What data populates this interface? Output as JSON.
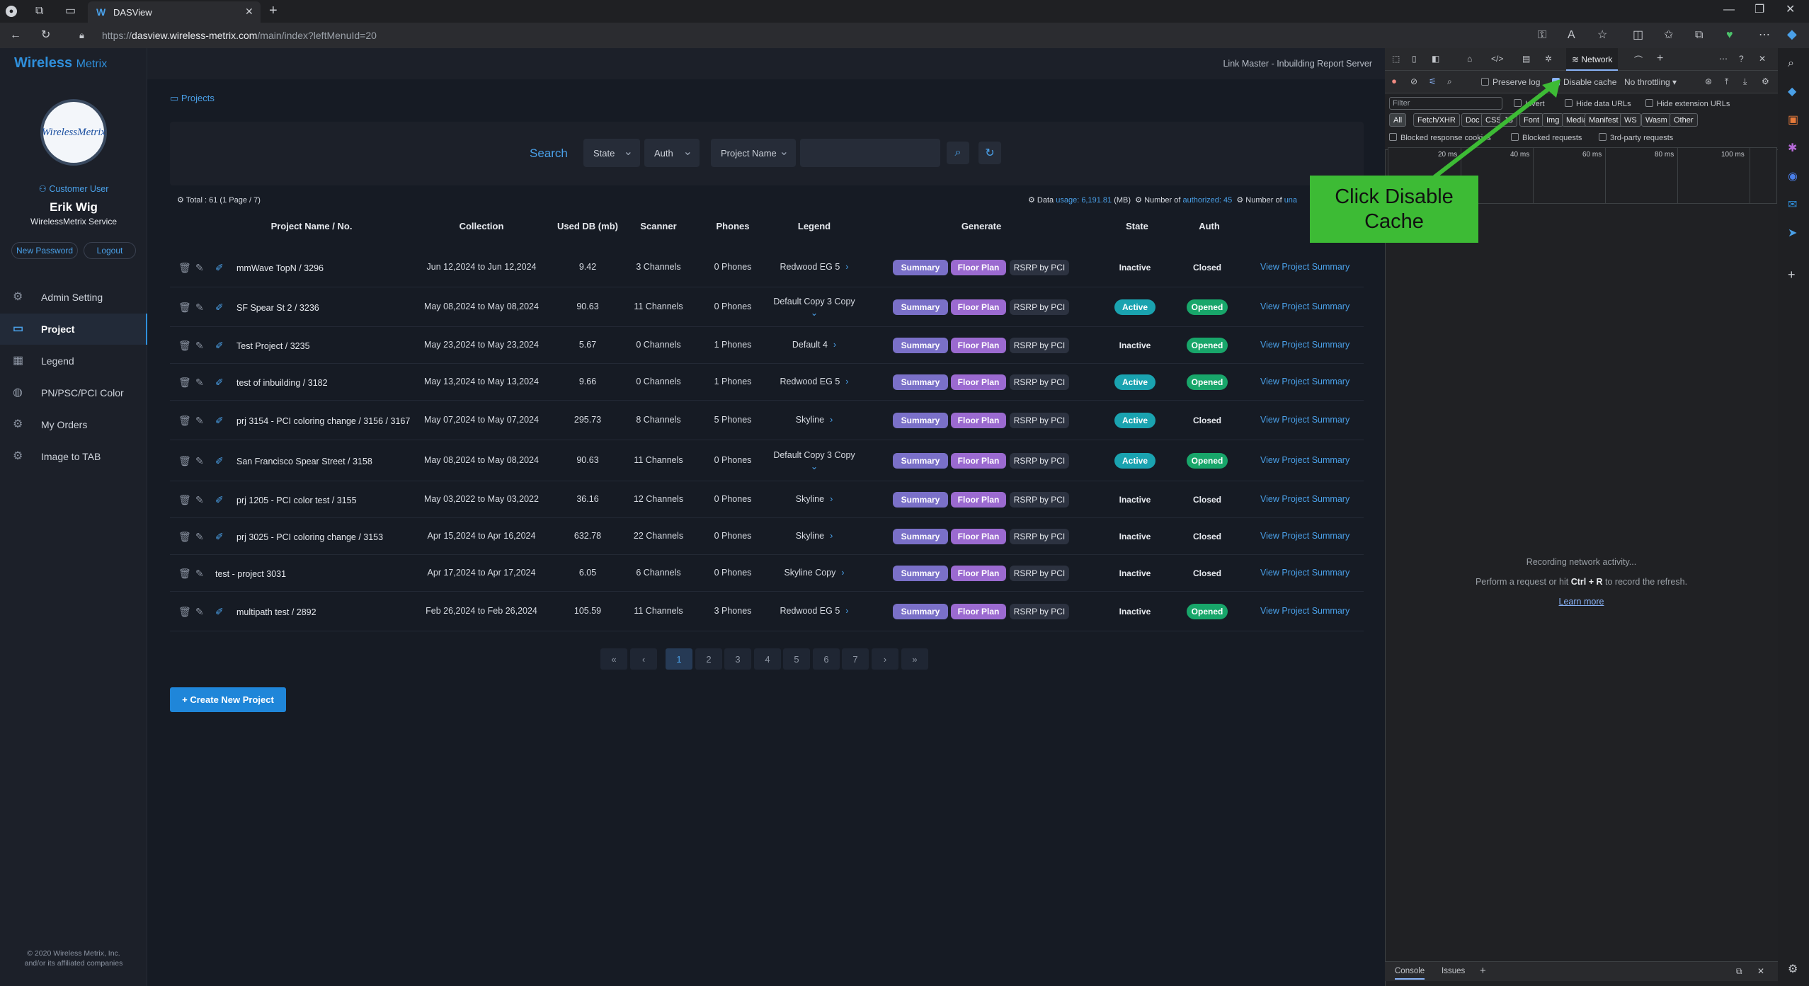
{
  "browser": {
    "tab_title": "DASView",
    "tab_favicon": "W",
    "url_prefix": "https://",
    "url_domain": "dasview.wireless-metrix.com",
    "url_path": "/main/index?leftMenuId=20"
  },
  "app": {
    "logo_main": "Wireless",
    "logo_sub": "Metrix",
    "header_right": "Link Master - Inbuilding Report Server",
    "avatar_text": "WirelessMetrix"
  },
  "user": {
    "role": "Customer User",
    "name": "Erik Wig",
    "company": "WirelessMetrix Service",
    "new_password": "New Password",
    "logout": "Logout"
  },
  "sidebar": {
    "items": [
      {
        "label": "Admin Setting",
        "icon": "gear-icon"
      },
      {
        "label": "Project",
        "icon": "monitor-icon"
      },
      {
        "label": "Legend",
        "icon": "grid-icon"
      },
      {
        "label": "PN/PSC/PCI Color",
        "icon": "palette-icon"
      },
      {
        "label": "My Orders",
        "icon": "gear-icon"
      },
      {
        "label": "Image to TAB",
        "icon": "gear-icon"
      }
    ],
    "footer_line1": "© 2020 Wireless Metrix, Inc.",
    "footer_line2": "and/or its affiliated companies"
  },
  "breadcrumb": "Projects",
  "search": {
    "label": "Search",
    "state": "State",
    "auth": "Auth",
    "project_name": "Project Name",
    "input_value": ""
  },
  "summary": {
    "total": "Total : 61 (1 Page / 7)",
    "data_prefix": "Data",
    "data_usage": "usage: 6,191.81",
    "data_unit": "(MB)",
    "authorized_prefix": "Number of",
    "authorized": "authorized: 45",
    "unauth_prefix": "Number of",
    "unauth": "una"
  },
  "table": {
    "headers": [
      "Project Name / No.",
      "Collection",
      "Used DB (mb)",
      "Scanner",
      "Phones",
      "Legend",
      "Generate",
      "State",
      "Auth"
    ],
    "rows": [
      {
        "name": "mmWave TopN / 3296",
        "collection": "Jun 12,2024 to Jun 12,2024",
        "db": "9.42",
        "scanner": "3 Channels",
        "phones": "0 Phones",
        "legend": "Redwood EG 5",
        "state": "Inactive",
        "auth": "Closed",
        "link": "View Project Summary"
      },
      {
        "name": "SF Spear St 2 / 3236",
        "collection": "May 08,2024 to May 08,2024",
        "db": "90.63",
        "scanner": "11 Channels",
        "phones": "0 Phones",
        "legend": "Default Copy 3 Copy",
        "state": "Active",
        "auth": "Opened",
        "link": "View Project Summary"
      },
      {
        "name": "Test Project / 3235",
        "collection": "May 23,2024 to May 23,2024",
        "db": "5.67",
        "scanner": "0 Channels",
        "phones": "1 Phones",
        "legend": "Default 4",
        "state": "Inactive",
        "auth": "Opened",
        "link": "View Project Summary"
      },
      {
        "name": "test of inbuilding / 3182",
        "collection": "May 13,2024 to May 13,2024",
        "db": "9.66",
        "scanner": "0 Channels",
        "phones": "1 Phones",
        "legend": "Redwood EG 5",
        "state": "Active",
        "auth": "Opened",
        "link": "View Project Summary"
      },
      {
        "name": "prj 3154 - PCI coloring change / 3156 / 3167",
        "collection": "May 07,2024 to May 07,2024",
        "db": "295.73",
        "scanner": "8 Channels",
        "phones": "5 Phones",
        "legend": "Skyline",
        "state": "Active",
        "auth": "Closed",
        "link": "View Project Summary"
      },
      {
        "name": "San Francisco Spear Street / 3158",
        "collection": "May 08,2024 to May 08,2024",
        "db": "90.63",
        "scanner": "11 Channels",
        "phones": "0 Phones",
        "legend": "Default Copy 3 Copy",
        "state": "Active",
        "auth": "Opened",
        "link": "View Project Summary"
      },
      {
        "name": "prj 1205 - PCI color test / 3155",
        "collection": "May 03,2022 to May 03,2022",
        "db": "36.16",
        "scanner": "12 Channels",
        "phones": "0 Phones",
        "legend": "Skyline",
        "state": "Inactive",
        "auth": "Closed",
        "link": "View Project Summary"
      },
      {
        "name": "prj 3025 - PCI coloring change / 3153",
        "collection": "Apr 15,2024 to Apr 16,2024",
        "db": "632.78",
        "scanner": "22 Channels",
        "phones": "0 Phones",
        "legend": "Skyline",
        "state": "Inactive",
        "auth": "Closed",
        "link": "View Project Summary"
      },
      {
        "name": "test - project 3031",
        "collection": "Apr 17,2024 to Apr 17,2024",
        "db": "6.05",
        "scanner": "6 Channels",
        "phones": "0 Phones",
        "legend": "Skyline Copy",
        "state": "Inactive",
        "auth": "Closed",
        "link": "View Project Summary"
      },
      {
        "name": "multipath test / 2892",
        "collection": "Feb 26,2024 to Feb 26,2024",
        "db": "105.59",
        "scanner": "11 Channels",
        "phones": "3 Phones",
        "legend": "Redwood EG 5",
        "state": "Inactive",
        "auth": "Opened",
        "link": "View Project Summary"
      }
    ],
    "generate_buttons": [
      "Summary",
      "Floor Plan",
      "RSRP by PCI"
    ]
  },
  "pagination": {
    "first": "«",
    "prev": "‹",
    "pages": [
      "1",
      "2",
      "3",
      "4",
      "5",
      "6",
      "7"
    ],
    "current": "1",
    "next": "›",
    "last": "»"
  },
  "create_button": "+ Create New Project",
  "devtools": {
    "active_tab": "Network",
    "preserve_log": "Preserve log",
    "disable_cache": "Disable cache",
    "throttling": "No throttling",
    "filter_placeholder": "Filter",
    "invert": "Invert",
    "hide_data_urls": "Hide data URLs",
    "hide_extension_urls": "Hide extension URLs",
    "filter_types": [
      "All",
      "Fetch/XHR",
      "Doc",
      "CSS",
      "JS",
      "Font",
      "Img",
      "Media",
      "Manifest",
      "WS",
      "Wasm",
      "Other"
    ],
    "blocked_cookies": "Blocked response cookies",
    "blocked_requests": "Blocked requests",
    "third_party": "3rd-party requests",
    "timeline_ticks": [
      "20 ms",
      "40 ms",
      "60 ms",
      "80 ms",
      "100 ms"
    ],
    "recording": "Recording network activity...",
    "hint_prefix": "Perform a request or hit",
    "hint_keys": "Ctrl + R",
    "hint_suffix": "to record the refresh.",
    "learn_more": "Learn more",
    "drawer_tabs": [
      "Console",
      "Issues"
    ]
  },
  "annotation": {
    "text_line1": "Click Disable",
    "text_line2": "Cache",
    "color": "#3dbb35"
  }
}
